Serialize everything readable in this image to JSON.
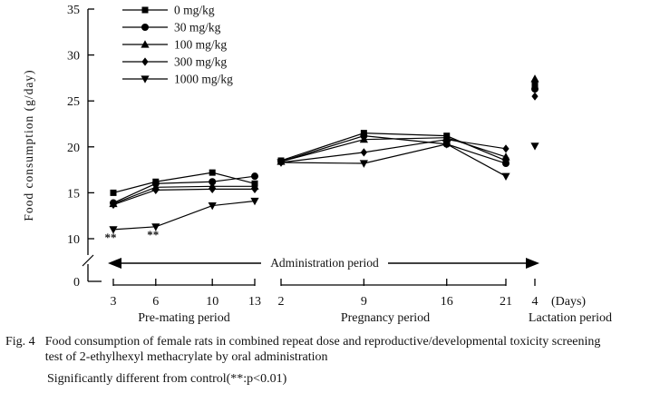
{
  "figure": {
    "caption_label": "Fig. 4",
    "caption_line1": "Food consumption of female rats in combined repeat dose and reproductive/developmental toxicity screening",
    "caption_line2": "test of 2-ethylhexyl methacrylate by oral administration",
    "caption_note": "Significantly different from control(**:p<0.01)"
  },
  "chart_data": {
    "type": "line",
    "title": "",
    "ylabel": "Food consumption (g/day)",
    "xlabel_unit": "(Days)",
    "ylim": [
      0,
      35
    ],
    "yticks": [
      0,
      10,
      15,
      20,
      25,
      30,
      35
    ],
    "y_axis_break": true,
    "grid": false,
    "legend_position": "top-left",
    "admin_arrow_label": "Administration period",
    "periods": [
      {
        "name": "Pre-mating period",
        "days": [
          3,
          6,
          10,
          13
        ]
      },
      {
        "name": "Pregnancy period",
        "days": [
          2,
          9,
          16,
          21
        ]
      },
      {
        "name": "Lactation period",
        "days": [
          4
        ]
      }
    ],
    "series": [
      {
        "name": "0 mg/kg",
        "marker": "square",
        "values": [
          [
            15.0,
            16.2,
            17.2,
            16.0
          ],
          [
            18.5,
            21.5,
            21.2,
            18.5
          ],
          [
            26.7
          ]
        ]
      },
      {
        "name": "30 mg/kg",
        "marker": "circle",
        "values": [
          [
            13.9,
            16.0,
            16.2,
            16.8
          ],
          [
            18.4,
            21.2,
            20.3,
            18.2
          ],
          [
            26.3
          ]
        ]
      },
      {
        "name": "100 mg/kg",
        "marker": "triangle-up",
        "values": [
          [
            13.8,
            15.6,
            15.7,
            15.7
          ],
          [
            18.4,
            20.8,
            21.0,
            18.9
          ],
          [
            27.4
          ]
        ]
      },
      {
        "name": "300 mg/kg",
        "marker": "diamond",
        "values": [
          [
            13.7,
            15.3,
            15.4,
            15.4
          ],
          [
            18.3,
            19.4,
            20.8,
            19.8
          ],
          [
            25.5
          ]
        ]
      },
      {
        "name": "1000 mg/kg",
        "marker": "triangle-down",
        "values": [
          [
            11.0,
            11.3,
            13.6,
            14.1
          ],
          [
            18.3,
            18.2,
            20.3,
            16.8
          ],
          [
            20.1
          ]
        ]
      }
    ],
    "annotations": [
      {
        "text": "**",
        "series": "1000 mg/kg",
        "period": 0,
        "day": 3
      },
      {
        "text": "**",
        "series": "1000 mg/kg",
        "period": 0,
        "day": 6
      }
    ],
    "colors": {
      "line": "#000000",
      "background": "#ffffff"
    }
  }
}
